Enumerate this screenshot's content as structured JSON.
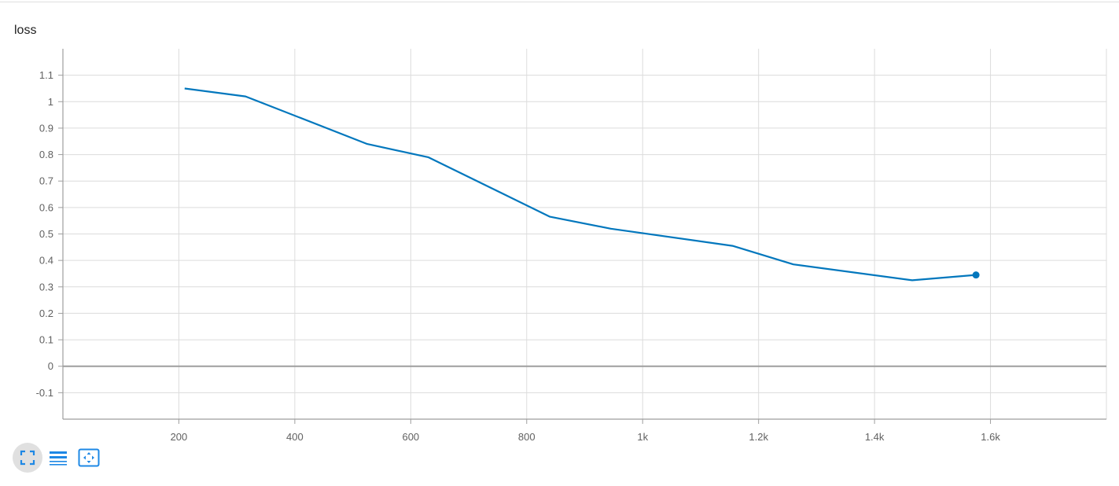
{
  "card": {
    "title": "loss"
  },
  "chart_data": {
    "type": "line",
    "title": "loss",
    "xlabel": "",
    "ylabel": "",
    "xlim": [
      0,
      1800
    ],
    "ylim": [
      -0.2,
      1.2
    ],
    "x_ticks": [
      200,
      400,
      600,
      800,
      1000,
      1200,
      1400,
      1600
    ],
    "x_tick_labels": [
      "200",
      "400",
      "600",
      "800",
      "1k",
      "1.2k",
      "1.4k",
      "1.6k"
    ],
    "y_ticks": [
      -0.1,
      0,
      0.1,
      0.2,
      0.3,
      0.4,
      0.5,
      0.6,
      0.7,
      0.8,
      0.9,
      1,
      1.1
    ],
    "y_tick_labels": [
      "-0.1",
      "0",
      "0.1",
      "0.2",
      "0.3",
      "0.4",
      "0.5",
      "0.6",
      "0.7",
      "0.8",
      "0.9",
      "1",
      "1.1"
    ],
    "grid": true,
    "series": [
      {
        "color": "#0277bd",
        "x": [
          210,
          315,
          525,
          630,
          840,
          945,
          1155,
          1260,
          1465,
          1575
        ],
        "y": [
          1.05,
          1.02,
          0.84,
          0.79,
          0.565,
          0.52,
          0.455,
          0.385,
          0.325,
          0.345
        ]
      }
    ]
  },
  "toolbar": {
    "buttons": [
      {
        "icon": "fullscreen-icon",
        "active": true
      },
      {
        "icon": "list-icon",
        "active": false
      },
      {
        "icon": "fit-domain-icon",
        "active": false
      }
    ]
  }
}
